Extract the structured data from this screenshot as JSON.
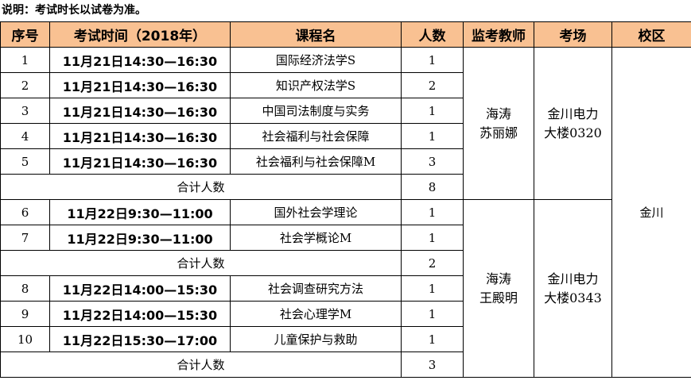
{
  "note": "说明：考试时长以试卷为准。",
  "headers": [
    "序号",
    "考试时间（2018年）",
    "课程名",
    "人数",
    "监考教师",
    "考场",
    "校区"
  ],
  "rows": [
    {
      "no": "1",
      "time": "11月21日14:30—16:30",
      "course": "国际经济法学S",
      "count": "1"
    },
    {
      "no": "2",
      "time": "11月21日14:30—16:30",
      "course": "知识产权法学S",
      "count": "2"
    },
    {
      "no": "3",
      "time": "11月21日14:30—16:30",
      "course": "中国司法制度与实务",
      "count": "1"
    },
    {
      "no": "4",
      "time": "11月21日14:30—16:30",
      "course": "社会福利与社会保障",
      "count": "1"
    },
    {
      "no": "5",
      "time": "11月21日14:30—16:30",
      "course": "社会福利与社会保障M",
      "count": "3"
    },
    {
      "no": "6",
      "time": "11月22日9:30—11:00",
      "course": "国外社会学理论",
      "count": "1"
    },
    {
      "no": "7",
      "time": "11月22日9:30—11:00",
      "course": "社会学概论M",
      "count": "1"
    },
    {
      "no": "8",
      "time": "11月22日14:00—15:30",
      "course": "社会调查研究方法",
      "count": "1"
    },
    {
      "no": "9",
      "time": "11月22日14:00—15:30",
      "course": "社会心理学M",
      "count": "1"
    },
    {
      "no": "10",
      "time": "11月22日15:30—17:00",
      "course": "儿童保护与救助",
      "count": "1"
    }
  ],
  "subtotal_label": "合计人数",
  "subtotals": [
    "8",
    "2",
    "3"
  ],
  "groups": [
    {
      "teacher1": "海涛",
      "teacher2": "苏丽娜",
      "room1": "金川电力",
      "room2": "大楼0320"
    },
    {
      "teacher1": "海涛",
      "teacher2": "王殿明",
      "room1": "金川电力",
      "room2": "大楼0343"
    }
  ],
  "campus": "金川"
}
